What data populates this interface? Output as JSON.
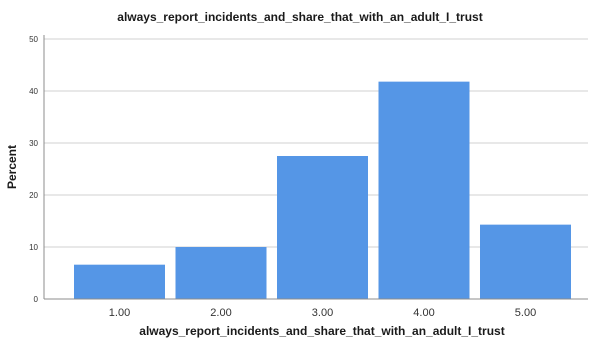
{
  "chart_data": {
    "type": "bar",
    "title": "always_report_incidents_and_share_that_with_an_adult_I_trust",
    "xlabel": "always_report_incidents_and_share_that_with_an_adult_I_trust",
    "ylabel": "Percent",
    "categories": [
      "1.00",
      "2.00",
      "3.00",
      "4.00",
      "5.00"
    ],
    "values": [
      6.6,
      10.0,
      27.5,
      41.8,
      14.3
    ],
    "ylim": [
      0,
      50
    ],
    "yticks": [
      "0",
      "10",
      "20",
      "30",
      "40",
      "50"
    ],
    "grid": true,
    "bar_color": "#5596e6"
  }
}
